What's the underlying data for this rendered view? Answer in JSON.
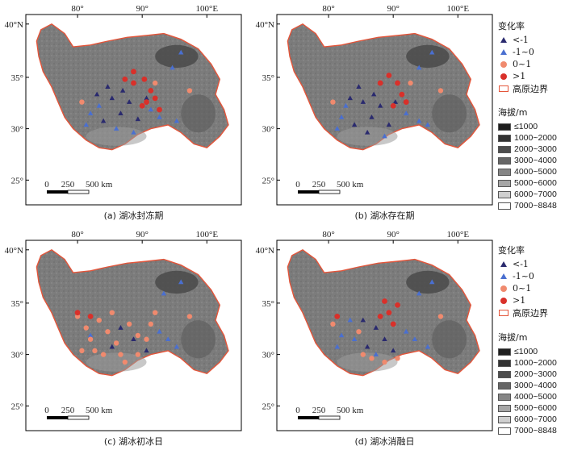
{
  "axes": {
    "top_ticks": [
      "80°",
      "90°",
      "100°E"
    ],
    "left_ticks": [
      "40°N",
      "35°",
      "30°",
      "25°"
    ]
  },
  "scale_bar": {
    "labels": [
      "0",
      "250",
      "500 km"
    ]
  },
  "panels": [
    {
      "caption": "(a) 湖冰封冻期"
    },
    {
      "caption": "(b) 湖冰存在期"
    },
    {
      "caption": "(c) 湖冰初冰日"
    },
    {
      "caption": "(d) 湖冰消融日"
    }
  ],
  "legend": {
    "title": "变化率",
    "items": [
      {
        "label": "<-1",
        "symbol": "triangle",
        "color": "#2a2a6e"
      },
      {
        "label": "-1~0",
        "symbol": "triangle",
        "color": "#4a6fd0"
      },
      {
        "label": "0~1",
        "symbol": "circle",
        "color": "#f08a6e"
      },
      {
        "label": ">1",
        "symbol": "circle",
        "color": "#d9302a"
      },
      {
        "label": "高原边界",
        "symbol": "rect",
        "color": "#e4553a"
      }
    ]
  },
  "elevation_legend": {
    "title": "海拔/m",
    "items": [
      {
        "label": "≤1000",
        "color": "#1e1e1e"
      },
      {
        "label": "1000~2000",
        "color": "#333333"
      },
      {
        "label": "2000~3000",
        "color": "#4d4d4d"
      },
      {
        "label": "3000~4000",
        "color": "#666666"
      },
      {
        "label": "4000~5000",
        "color": "#858585"
      },
      {
        "label": "5000~6000",
        "color": "#a6a6a6"
      },
      {
        "label": "6000~7000",
        "color": "#cfcfcf"
      },
      {
        "label": "7000~8848",
        "color": "#ffffff"
      }
    ]
  },
  "colors": {
    "boundary": "#e4553a",
    "terrain": "#7f7f7f",
    "frame": "#000000"
  }
}
